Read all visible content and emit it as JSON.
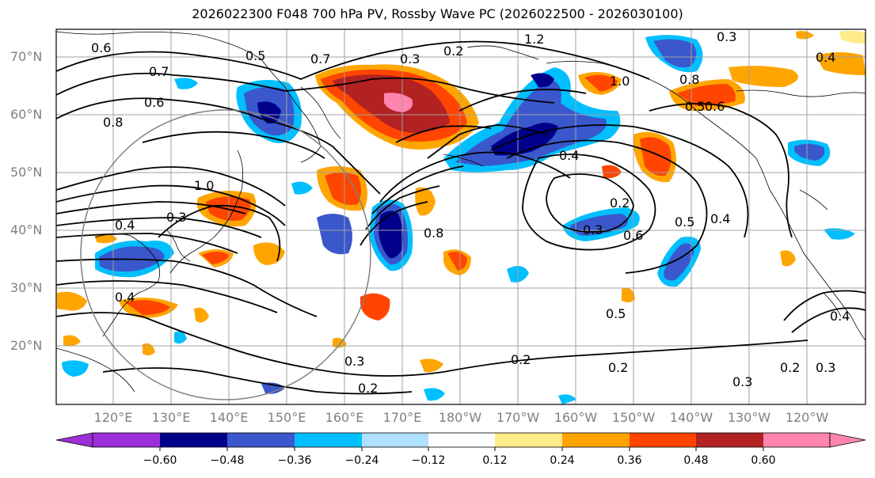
{
  "title": "2026022300 F048 700 hPa PV, Rossby Wave PC (2026022500 - 2026030100)",
  "lat_labels": [
    "70°N",
    "60°N",
    "50°N",
    "40°N",
    "30°N",
    "20°N"
  ],
  "lon_labels": [
    "120°E",
    "130°E",
    "140°E",
    "150°E",
    "160°E",
    "170°E",
    "180°W",
    "170°W",
    "160°W",
    "150°W",
    "140°W",
    "130°W",
    "120°W"
  ],
  "colorbar": {
    "ticks": [
      "−0.60",
      "−0.48",
      "−0.36",
      "−0.24",
      "−0.12",
      "0.12",
      "0.24",
      "0.36",
      "0.48",
      "0.60"
    ],
    "colors": [
      "#9b30d9",
      "#00008b",
      "#3a57cc",
      "#00bfff",
      "#b0e0ff",
      "#ffffff",
      "#ffeb8a",
      "#ffa500",
      "#ff4500",
      "#b22222",
      "#ff85b0"
    ]
  },
  "pv_contour_labels": [
    "0.6",
    "0.5",
    "0.7",
    "0.6",
    "0.8",
    "0.7",
    "0.3",
    "0.2",
    "1.2",
    "0.3",
    "0.4",
    "1.0",
    "0.8",
    "0.6",
    "0.5",
    "0.4",
    "0.3",
    "0.2",
    "0.2",
    "0.3",
    "0.2",
    "0.4",
    "0.5",
    "0.8",
    "0.5",
    "0.6",
    "1.0",
    "0.4",
    "0.3",
    "0.2",
    "0.3",
    "0.2",
    "0.4",
    "0.4",
    "0.3"
  ]
}
